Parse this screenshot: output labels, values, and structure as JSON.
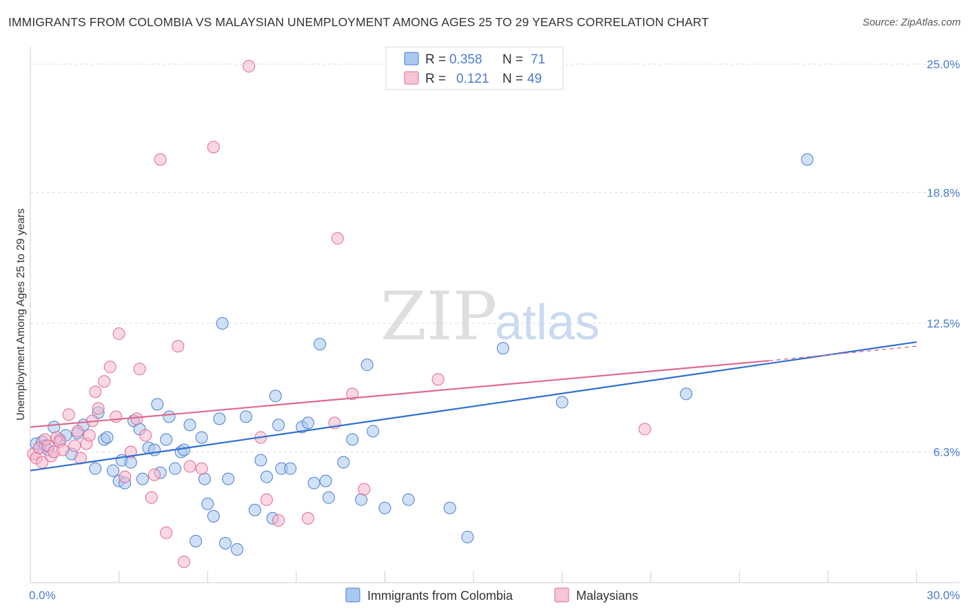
{
  "title": "IMMIGRANTS FROM COLOMBIA VS MALAYSIAN UNEMPLOYMENT AMONG AGES 25 TO 29 YEARS CORRELATION CHART",
  "source": "Source: ZipAtlas.com",
  "watermark": {
    "zip": "ZIP",
    "atlas": "atlas"
  },
  "colors": {
    "blue": "#4a7bd0",
    "blue_fill": "#aac8f0",
    "blue_line": "#2f6fd0",
    "pink": "#e06890",
    "pink_fill": "#f5b8cc",
    "pink_line": "#e06890",
    "grid": "#dddddd",
    "text": "#333333"
  },
  "legend": {
    "rows": [
      {
        "r_label": "R =",
        "r_value": "0.358",
        "n_label": "N =",
        "n_value": "71"
      },
      {
        "r_label": "R =",
        "r_value": "0.121",
        "n_label": "N =",
        "n_value": "49"
      }
    ]
  },
  "chart_data": {
    "type": "scatter",
    "title": "IMMIGRANTS FROM COLOMBIA VS MALAYSIAN UNEMPLOYMENT AMONG AGES 25 TO 29 YEARS CORRELATION CHART",
    "xlabel": "",
    "ylabel": "Unemployment Among Ages 25 to 29 years",
    "xlim": [
      0,
      30
    ],
    "ylim": [
      0,
      25.5
    ],
    "x_tick_labels": [
      "0.0%",
      "30.0%"
    ],
    "y_ticks": [
      6.3,
      12.5,
      18.8,
      25.0
    ],
    "y_tick_labels": [
      "6.3%",
      "12.5%",
      "18.8%",
      "25.0%"
    ],
    "grid": true,
    "legend_position": "bottom",
    "series": [
      {
        "name": "Immigrants from Colombia",
        "color": "#4a7bd0",
        "trend": {
          "x": [
            0,
            30
          ],
          "y": [
            5.4,
            11.6
          ]
        },
        "points": [
          [
            0.2,
            6.7
          ],
          [
            0.3,
            6.5
          ],
          [
            0.4,
            6.8
          ],
          [
            0.5,
            6.6
          ],
          [
            0.6,
            6.4
          ],
          [
            0.8,
            7.5
          ],
          [
            1.0,
            6.9
          ],
          [
            1.2,
            7.1
          ],
          [
            1.4,
            6.2
          ],
          [
            1.6,
            7.2
          ],
          [
            1.8,
            7.6
          ],
          [
            2.2,
            5.5
          ],
          [
            2.3,
            8.2
          ],
          [
            2.5,
            6.9
          ],
          [
            2.6,
            7.0
          ],
          [
            2.8,
            5.4
          ],
          [
            3.0,
            4.9
          ],
          [
            3.1,
            5.9
          ],
          [
            3.2,
            4.8
          ],
          [
            3.4,
            5.8
          ],
          [
            3.5,
            7.8
          ],
          [
            3.7,
            7.4
          ],
          [
            3.8,
            5.0
          ],
          [
            4.0,
            6.5
          ],
          [
            4.2,
            6.4
          ],
          [
            4.3,
            8.6
          ],
          [
            4.4,
            5.3
          ],
          [
            4.6,
            6.9
          ],
          [
            4.7,
            8.0
          ],
          [
            4.9,
            5.5
          ],
          [
            5.1,
            6.3
          ],
          [
            5.2,
            6.4
          ],
          [
            5.4,
            7.6
          ],
          [
            5.6,
            2.0
          ],
          [
            5.8,
            7.0
          ],
          [
            5.9,
            5.0
          ],
          [
            6.0,
            3.8
          ],
          [
            6.2,
            3.2
          ],
          [
            6.4,
            7.9
          ],
          [
            6.5,
            12.5
          ],
          [
            6.6,
            1.9
          ],
          [
            6.7,
            5.0
          ],
          [
            7.0,
            1.6
          ],
          [
            7.3,
            8.0
          ],
          [
            7.6,
            3.5
          ],
          [
            7.8,
            5.9
          ],
          [
            8.0,
            5.1
          ],
          [
            8.2,
            3.1
          ],
          [
            8.3,
            9.0
          ],
          [
            8.4,
            7.6
          ],
          [
            8.5,
            5.5
          ],
          [
            8.8,
            5.5
          ],
          [
            9.2,
            7.5
          ],
          [
            9.4,
            7.7
          ],
          [
            9.6,
            4.8
          ],
          [
            9.8,
            11.5
          ],
          [
            10.0,
            4.9
          ],
          [
            10.1,
            4.1
          ],
          [
            10.6,
            5.8
          ],
          [
            10.9,
            6.9
          ],
          [
            11.2,
            4.0
          ],
          [
            11.4,
            10.5
          ],
          [
            11.6,
            7.3
          ],
          [
            12.0,
            3.6
          ],
          [
            12.8,
            4.0
          ],
          [
            14.2,
            3.6
          ],
          [
            14.8,
            2.2
          ],
          [
            16.0,
            11.3
          ],
          [
            18.0,
            8.7
          ],
          [
            22.2,
            9.1
          ],
          [
            26.3,
            20.4
          ]
        ]
      },
      {
        "name": "Malaysians",
        "color": "#e06890",
        "trend": {
          "x": [
            0,
            25
          ],
          "y": [
            7.5,
            10.7
          ]
        },
        "trend_dashed": {
          "x": [
            25,
            30
          ],
          "y": [
            10.7,
            11.4
          ]
        },
        "points": [
          [
            0.1,
            6.2
          ],
          [
            0.2,
            6.0
          ],
          [
            0.3,
            6.5
          ],
          [
            0.4,
            5.8
          ],
          [
            0.5,
            6.9
          ],
          [
            0.6,
            6.6
          ],
          [
            0.7,
            6.1
          ],
          [
            0.8,
            6.3
          ],
          [
            0.9,
            7.0
          ],
          [
            1.0,
            6.8
          ],
          [
            1.1,
            6.4
          ],
          [
            1.3,
            8.1
          ],
          [
            1.5,
            6.6
          ],
          [
            1.6,
            7.3
          ],
          [
            1.7,
            6.0
          ],
          [
            1.9,
            6.7
          ],
          [
            2.0,
            7.1
          ],
          [
            2.1,
            7.8
          ],
          [
            2.2,
            9.2
          ],
          [
            2.3,
            8.4
          ],
          [
            2.5,
            9.7
          ],
          [
            2.7,
            10.4
          ],
          [
            2.9,
            8.0
          ],
          [
            3.0,
            12.0
          ],
          [
            3.2,
            5.1
          ],
          [
            3.4,
            6.3
          ],
          [
            3.6,
            7.9
          ],
          [
            3.7,
            10.3
          ],
          [
            3.9,
            7.1
          ],
          [
            4.1,
            4.1
          ],
          [
            4.2,
            5.2
          ],
          [
            4.4,
            20.4
          ],
          [
            4.6,
            2.4
          ],
          [
            5.0,
            11.4
          ],
          [
            5.2,
            1.0
          ],
          [
            5.4,
            5.6
          ],
          [
            5.8,
            5.5
          ],
          [
            6.2,
            21.0
          ],
          [
            7.4,
            24.9
          ],
          [
            7.8,
            7.0
          ],
          [
            8.0,
            4.0
          ],
          [
            8.4,
            3.0
          ],
          [
            9.4,
            3.1
          ],
          [
            10.3,
            7.7
          ],
          [
            10.4,
            16.6
          ],
          [
            10.9,
            9.1
          ],
          [
            11.3,
            4.5
          ],
          [
            13.8,
            9.8
          ],
          [
            20.8,
            7.4
          ]
        ]
      }
    ]
  },
  "bottom_legend": [
    {
      "label": "Immigrants from Colombia"
    },
    {
      "label": "Malaysians"
    }
  ]
}
